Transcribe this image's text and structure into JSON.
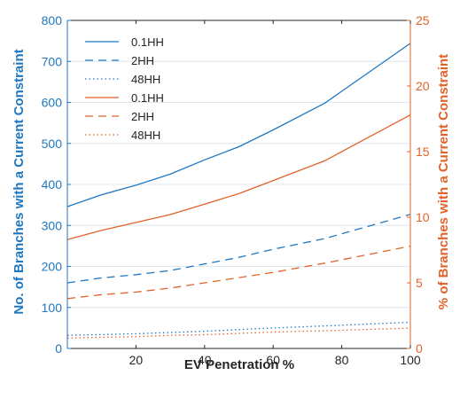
{
  "chart_data": {
    "type": "line",
    "xlabel": "EV Penetration %",
    "ylabel_left": "No. of Branches with a Current Constraint",
    "ylabel_right": "% of Branches with a Current Constraint",
    "xlim": [
      0,
      100
    ],
    "ylim_left": [
      0,
      800
    ],
    "ylim_right": [
      0,
      25
    ],
    "xticks": [
      20,
      40,
      60,
      80,
      100
    ],
    "yticks_left": [
      0,
      100,
      200,
      300,
      400,
      500,
      600,
      700,
      800
    ],
    "yticks_right": [
      0,
      5,
      10,
      15,
      20,
      25
    ],
    "grid": "horizontal",
    "legend_position": "top-left",
    "colors": {
      "left": "#1f77c0",
      "right": "#e2622a",
      "grid": "#dce7f0",
      "axis": "#262626"
    },
    "x": [
      0,
      10,
      20,
      30,
      40,
      50,
      60,
      75,
      100
    ],
    "series": [
      {
        "name": "0.1HH",
        "axis": "left",
        "style": "solid",
        "values": [
          346,
          375,
          398,
          425,
          460,
          492,
          533,
          598,
          744
        ]
      },
      {
        "name": "2HH",
        "axis": "left",
        "style": "dashed",
        "values": [
          160,
          172,
          180,
          190,
          206,
          222,
          242,
          268,
          327
        ]
      },
      {
        "name": "48HH",
        "axis": "left",
        "style": "dotted",
        "values": [
          32,
          34,
          36,
          39,
          42,
          46,
          50,
          55,
          64
        ]
      },
      {
        "name": "0.1HH",
        "axis": "right",
        "style": "solid",
        "values": [
          8.3,
          9.0,
          9.6,
          10.2,
          11.0,
          11.8,
          12.8,
          14.3,
          17.8
        ]
      },
      {
        "name": "2HH",
        "axis": "right",
        "style": "dashed",
        "values": [
          3.8,
          4.1,
          4.3,
          4.6,
          5.0,
          5.4,
          5.8,
          6.5,
          7.8
        ]
      },
      {
        "name": "48HH",
        "axis": "right",
        "style": "dotted",
        "values": [
          0.8,
          0.85,
          0.9,
          1.0,
          1.05,
          1.15,
          1.25,
          1.35,
          1.55
        ]
      }
    ]
  }
}
